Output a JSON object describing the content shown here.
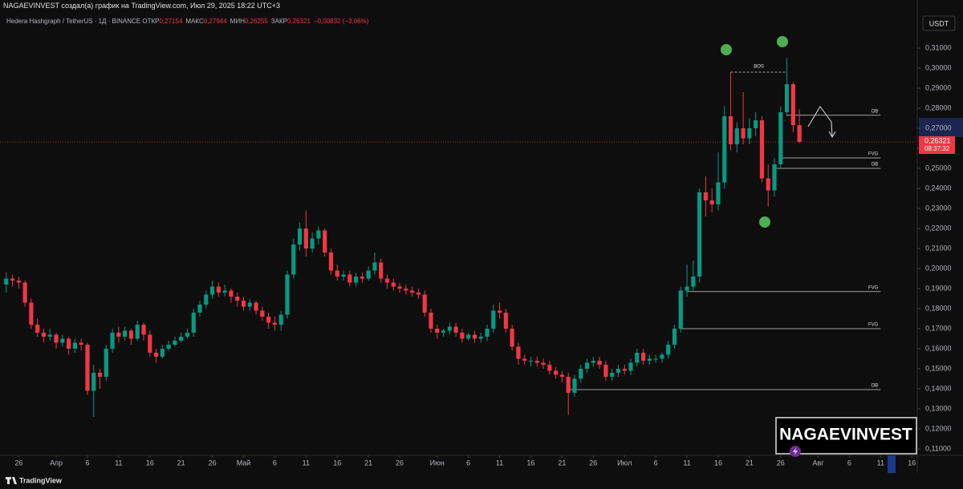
{
  "header": {
    "attribution": "NAGAEVINVEST создал(а) график на TradingView.com, Июл 29, 2025 18:22 UTC+3",
    "symbol": "Hedera Hashgraph / TetherUS · 1Д · BINANCE",
    "ohlc": [
      {
        "label": "ОТКР",
        "value": "0,27154"
      },
      {
        "label": "МАКС",
        "value": "0,27944"
      },
      {
        "label": "МИН",
        "value": "0,26255"
      },
      {
        "label": "ЗАКР",
        "value": "0,26321"
      }
    ],
    "change": "−0,00832 (−3,06%)",
    "currency": "USDT"
  },
  "chart_data": {
    "type": "candlestick",
    "x": [
      "2025-03-24",
      "2025-03-25",
      "2025-03-26",
      "2025-03-27",
      "2025-03-28",
      "2025-03-29",
      "2025-03-30",
      "2025-03-31",
      "2025-04-01",
      "2025-04-02",
      "2025-04-03",
      "2025-04-04",
      "2025-04-05",
      "2025-04-06",
      "2025-04-07",
      "2025-04-08",
      "2025-04-09",
      "2025-04-10",
      "2025-04-11",
      "2025-04-12",
      "2025-04-13",
      "2025-04-14",
      "2025-04-15",
      "2025-04-16",
      "2025-04-17",
      "2025-04-18",
      "2025-04-19",
      "2025-04-20",
      "2025-04-21",
      "2025-04-22",
      "2025-04-23",
      "2025-04-24",
      "2025-04-25",
      "2025-04-26",
      "2025-04-27",
      "2025-04-28",
      "2025-04-29",
      "2025-04-30",
      "2025-05-01",
      "2025-05-02",
      "2025-05-03",
      "2025-05-04",
      "2025-05-05",
      "2025-05-06",
      "2025-05-07",
      "2025-05-08",
      "2025-05-09",
      "2025-05-10",
      "2025-05-11",
      "2025-05-12",
      "2025-05-13",
      "2025-05-14",
      "2025-05-15",
      "2025-05-16",
      "2025-05-17",
      "2025-05-18",
      "2025-05-19",
      "2025-05-20",
      "2025-05-21",
      "2025-05-22",
      "2025-05-23",
      "2025-05-24",
      "2025-05-25",
      "2025-05-26",
      "2025-05-27",
      "2025-05-28",
      "2025-05-29",
      "2025-05-30",
      "2025-05-31",
      "2025-06-01",
      "2025-06-02",
      "2025-06-03",
      "2025-06-04",
      "2025-06-05",
      "2025-06-06",
      "2025-06-07",
      "2025-06-08",
      "2025-06-09",
      "2025-06-10",
      "2025-06-11",
      "2025-06-12",
      "2025-06-13",
      "2025-06-14",
      "2025-06-15",
      "2025-06-16",
      "2025-06-17",
      "2025-06-18",
      "2025-06-19",
      "2025-06-20",
      "2025-06-21",
      "2025-06-22",
      "2025-06-23",
      "2025-06-24",
      "2025-06-25",
      "2025-06-26",
      "2025-06-27",
      "2025-06-28",
      "2025-06-29",
      "2025-06-30",
      "2025-07-01",
      "2025-07-02",
      "2025-07-03",
      "2025-07-04",
      "2025-07-05",
      "2025-07-06",
      "2025-07-07",
      "2025-07-08",
      "2025-07-09",
      "2025-07-10",
      "2025-07-11",
      "2025-07-12",
      "2025-07-13",
      "2025-07-14",
      "2025-07-15",
      "2025-07-16",
      "2025-07-17",
      "2025-07-18",
      "2025-07-19",
      "2025-07-20",
      "2025-07-21",
      "2025-07-22",
      "2025-07-23",
      "2025-07-24",
      "2025-07-25",
      "2025-07-26",
      "2025-07-27",
      "2025-07-28",
      "2025-07-29"
    ],
    "open": [
      0.192,
      0.195,
      0.194,
      0.193,
      0.183,
      0.172,
      0.168,
      0.166,
      0.167,
      0.163,
      0.165,
      0.16,
      0.163,
      0.162,
      0.139,
      0.148,
      0.146,
      0.16,
      0.168,
      0.166,
      0.169,
      0.165,
      0.172,
      0.167,
      0.158,
      0.156,
      0.16,
      0.162,
      0.164,
      0.166,
      0.168,
      0.178,
      0.182,
      0.187,
      0.191,
      0.188,
      0.189,
      0.186,
      0.184,
      0.181,
      0.183,
      0.179,
      0.176,
      0.173,
      0.172,
      0.177,
      0.197,
      0.212,
      0.22,
      0.21,
      0.215,
      0.219,
      0.208,
      0.199,
      0.196,
      0.197,
      0.193,
      0.196,
      0.195,
      0.199,
      0.203,
      0.195,
      0.193,
      0.191,
      0.19,
      0.189,
      0.188,
      0.187,
      0.178,
      0.17,
      0.168,
      0.169,
      0.171,
      0.168,
      0.165,
      0.167,
      0.165,
      0.166,
      0.17,
      0.179,
      0.178,
      0.17,
      0.161,
      0.155,
      0.154,
      0.154,
      0.153,
      0.152,
      0.149,
      0.147,
      0.146,
      0.138,
      0.145,
      0.15,
      0.153,
      0.154,
      0.152,
      0.146,
      0.148,
      0.15,
      0.149,
      0.153,
      0.158,
      0.154,
      0.155,
      0.155,
      0.157,
      0.162,
      0.17,
      0.189,
      0.191,
      0.196,
      0.238,
      0.234,
      0.232,
      0.243,
      0.276,
      0.262,
      0.27,
      0.265,
      0.27,
      0.274,
      0.245,
      0.239,
      0.252,
      0.278,
      0.292,
      0.27154
    ],
    "high": [
      0.198,
      0.197,
      0.196,
      0.194,
      0.185,
      0.175,
      0.17,
      0.17,
      0.168,
      0.167,
      0.166,
      0.165,
      0.165,
      0.163,
      0.152,
      0.15,
      0.162,
      0.17,
      0.171,
      0.171,
      0.17,
      0.174,
      0.173,
      0.169,
      0.16,
      0.162,
      0.164,
      0.166,
      0.168,
      0.17,
      0.18,
      0.184,
      0.189,
      0.194,
      0.193,
      0.192,
      0.19,
      0.188,
      0.186,
      0.185,
      0.184,
      0.181,
      0.178,
      0.176,
      0.179,
      0.199,
      0.215,
      0.223,
      0.229,
      0.218,
      0.221,
      0.22,
      0.21,
      0.202,
      0.199,
      0.199,
      0.198,
      0.198,
      0.201,
      0.208,
      0.205,
      0.197,
      0.195,
      0.193,
      0.192,
      0.191,
      0.19,
      0.189,
      0.18,
      0.172,
      0.17,
      0.173,
      0.173,
      0.17,
      0.168,
      0.169,
      0.168,
      0.172,
      0.182,
      0.183,
      0.18,
      0.172,
      0.163,
      0.157,
      0.156,
      0.156,
      0.155,
      0.154,
      0.151,
      0.149,
      0.148,
      0.147,
      0.152,
      0.155,
      0.156,
      0.156,
      0.154,
      0.15,
      0.152,
      0.152,
      0.155,
      0.16,
      0.16,
      0.157,
      0.157,
      0.158,
      0.164,
      0.172,
      0.191,
      0.202,
      0.204,
      0.24,
      0.246,
      0.24,
      0.258,
      0.281,
      0.298,
      0.273,
      0.288,
      0.275,
      0.278,
      0.276,
      0.252,
      0.255,
      0.281,
      0.305,
      0.293,
      0.27944
    ],
    "low": [
      0.188,
      0.191,
      0.19,
      0.181,
      0.17,
      0.166,
      0.163,
      0.164,
      0.16,
      0.161,
      0.157,
      0.158,
      0.159,
      0.137,
      0.126,
      0.14,
      0.144,
      0.158,
      0.163,
      0.164,
      0.162,
      0.164,
      0.164,
      0.156,
      0.153,
      0.155,
      0.159,
      0.161,
      0.163,
      0.165,
      0.166,
      0.176,
      0.18,
      0.185,
      0.186,
      0.186,
      0.183,
      0.181,
      0.179,
      0.179,
      0.177,
      0.174,
      0.17,
      0.169,
      0.169,
      0.175,
      0.195,
      0.209,
      0.206,
      0.208,
      0.212,
      0.206,
      0.197,
      0.194,
      0.194,
      0.191,
      0.191,
      0.193,
      0.194,
      0.197,
      0.193,
      0.19,
      0.189,
      0.188,
      0.187,
      0.186,
      0.185,
      0.176,
      0.168,
      0.165,
      0.166,
      0.167,
      0.166,
      0.163,
      0.164,
      0.163,
      0.163,
      0.164,
      0.168,
      0.175,
      0.168,
      0.159,
      0.152,
      0.152,
      0.151,
      0.151,
      0.15,
      0.147,
      0.145,
      0.143,
      0.127,
      0.136,
      0.143,
      0.148,
      0.151,
      0.15,
      0.144,
      0.144,
      0.146,
      0.147,
      0.147,
      0.151,
      0.152,
      0.152,
      0.153,
      0.153,
      0.155,
      0.16,
      0.168,
      0.186,
      0.189,
      0.193,
      0.226,
      0.228,
      0.229,
      0.24,
      0.259,
      0.258,
      0.262,
      0.262,
      0.266,
      0.243,
      0.231,
      0.236,
      0.25,
      0.276,
      0.268,
      0.26255
    ],
    "close": [
      0.195,
      0.194,
      0.193,
      0.183,
      0.172,
      0.168,
      0.166,
      0.167,
      0.163,
      0.165,
      0.16,
      0.163,
      0.162,
      0.139,
      0.148,
      0.146,
      0.16,
      0.168,
      0.166,
      0.169,
      0.165,
      0.172,
      0.167,
      0.158,
      0.156,
      0.16,
      0.162,
      0.164,
      0.166,
      0.168,
      0.178,
      0.182,
      0.187,
      0.191,
      0.188,
      0.189,
      0.186,
      0.184,
      0.181,
      0.183,
      0.179,
      0.176,
      0.173,
      0.172,
      0.177,
      0.197,
      0.212,
      0.22,
      0.21,
      0.215,
      0.219,
      0.208,
      0.199,
      0.196,
      0.197,
      0.193,
      0.196,
      0.195,
      0.199,
      0.203,
      0.195,
      0.193,
      0.191,
      0.19,
      0.189,
      0.188,
      0.187,
      0.178,
      0.17,
      0.168,
      0.169,
      0.171,
      0.168,
      0.165,
      0.167,
      0.165,
      0.166,
      0.17,
      0.179,
      0.178,
      0.17,
      0.161,
      0.155,
      0.154,
      0.154,
      0.153,
      0.152,
      0.149,
      0.147,
      0.146,
      0.138,
      0.145,
      0.15,
      0.153,
      0.154,
      0.152,
      0.146,
      0.148,
      0.15,
      0.149,
      0.153,
      0.158,
      0.154,
      0.155,
      0.155,
      0.157,
      0.162,
      0.17,
      0.189,
      0.191,
      0.196,
      0.238,
      0.234,
      0.232,
      0.243,
      0.276,
      0.262,
      0.27,
      0.265,
      0.27,
      0.274,
      0.245,
      0.239,
      0.252,
      0.278,
      0.292,
      0.27154,
      0.26321
    ],
    "up_color": "#089981",
    "down_color": "#f23645",
    "ylim": [
      0.102,
      0.316
    ],
    "yticks": [
      {
        "value": 0.11,
        "label": "0,11000"
      },
      {
        "value": 0.12,
        "label": "0,12000"
      },
      {
        "value": 0.13,
        "label": "0,13000"
      },
      {
        "value": 0.14,
        "label": "0,14000"
      },
      {
        "value": 0.15,
        "label": "0,15000"
      },
      {
        "value": 0.16,
        "label": "0,16000"
      },
      {
        "value": 0.17,
        "label": "0,17000"
      },
      {
        "value": 0.18,
        "label": "0,18000"
      },
      {
        "value": 0.19,
        "label": "0,19000"
      },
      {
        "value": 0.2,
        "label": "0,20000"
      },
      {
        "value": 0.21,
        "label": "0,21000"
      },
      {
        "value": 0.22,
        "label": "0,22000"
      },
      {
        "value": 0.23,
        "label": "0,23000"
      },
      {
        "value": 0.24,
        "label": "0,24000"
      },
      {
        "value": 0.25,
        "label": "0,25000"
      },
      {
        "value": 0.26,
        "label": "0,26000"
      },
      {
        "value": 0.27,
        "label": "0,27000"
      },
      {
        "value": 0.28,
        "label": "0,28000"
      },
      {
        "value": 0.29,
        "label": "0,29000"
      },
      {
        "value": 0.3,
        "label": "0,30000"
      },
      {
        "value": 0.31,
        "label": "0,31000"
      }
    ],
    "xlim": [
      "2025-03-23",
      "2025-08-17"
    ],
    "xticks": [
      {
        "value": "2025-03-26",
        "label": "26"
      },
      {
        "value": "2025-04-01",
        "label": "Апр"
      },
      {
        "value": "2025-04-06",
        "label": "6"
      },
      {
        "value": "2025-04-11",
        "label": "11"
      },
      {
        "value": "2025-04-16",
        "label": "16"
      },
      {
        "value": "2025-04-21",
        "label": "21"
      },
      {
        "value": "2025-04-26",
        "label": "26"
      },
      {
        "value": "2025-05-01",
        "label": "Май"
      },
      {
        "value": "2025-05-06",
        "label": "6"
      },
      {
        "value": "2025-05-11",
        "label": "11"
      },
      {
        "value": "2025-05-16",
        "label": "16"
      },
      {
        "value": "2025-05-21",
        "label": "21"
      },
      {
        "value": "2025-05-26",
        "label": "26"
      },
      {
        "value": "2025-06-01",
        "label": "Июн"
      },
      {
        "value": "2025-06-06",
        "label": "6"
      },
      {
        "value": "2025-06-11",
        "label": "11"
      },
      {
        "value": "2025-06-16",
        "label": "16"
      },
      {
        "value": "2025-06-21",
        "label": "21"
      },
      {
        "value": "2025-06-26",
        "label": "26"
      },
      {
        "value": "2025-07-01",
        "label": "Июл"
      },
      {
        "value": "2025-07-06",
        "label": "6"
      },
      {
        "value": "2025-07-11",
        "label": "11"
      },
      {
        "value": "2025-07-16",
        "label": "16"
      },
      {
        "value": "2025-07-21",
        "label": "21"
      },
      {
        "value": "2025-07-26",
        "label": "26"
      },
      {
        "value": "2025-08-01",
        "label": "Авг"
      },
      {
        "value": "2025-08-06",
        "label": "6"
      },
      {
        "value": "2025-08-11",
        "label": "11"
      },
      {
        "value": "2025-08-16",
        "label": "16"
      }
    ],
    "grid": false,
    "last_price": {
      "value": 0.26321,
      "label": "0,26321"
    },
    "countdown": "08:37:32",
    "levels": [
      {
        "label": "OB",
        "value": 0.2765,
        "x_start": "2025-07-27",
        "x_end": "2025-08-11"
      },
      {
        "label": "FVG",
        "value": 0.2552,
        "x_start": "2025-07-26",
        "x_end": "2025-08-11"
      },
      {
        "label": "OB",
        "value": 0.25,
        "x_start": "2025-07-25",
        "x_end": "2025-08-11"
      },
      {
        "label": "FVG",
        "value": 0.1885,
        "x_start": "2025-07-11",
        "x_end": "2025-08-11"
      },
      {
        "label": "FVG",
        "value": 0.17,
        "x_start": "2025-07-10",
        "x_end": "2025-08-11"
      },
      {
        "label": "OB",
        "value": 0.1396,
        "x_start": "2025-06-22",
        "x_end": "2025-08-11"
      }
    ],
    "bos": {
      "label": "BOS",
      "value": 0.298,
      "x_start": "2025-07-18",
      "x_end": "2025-07-27"
    }
  },
  "watermark": "NAGAEVINVEST",
  "footer": "TradingView"
}
